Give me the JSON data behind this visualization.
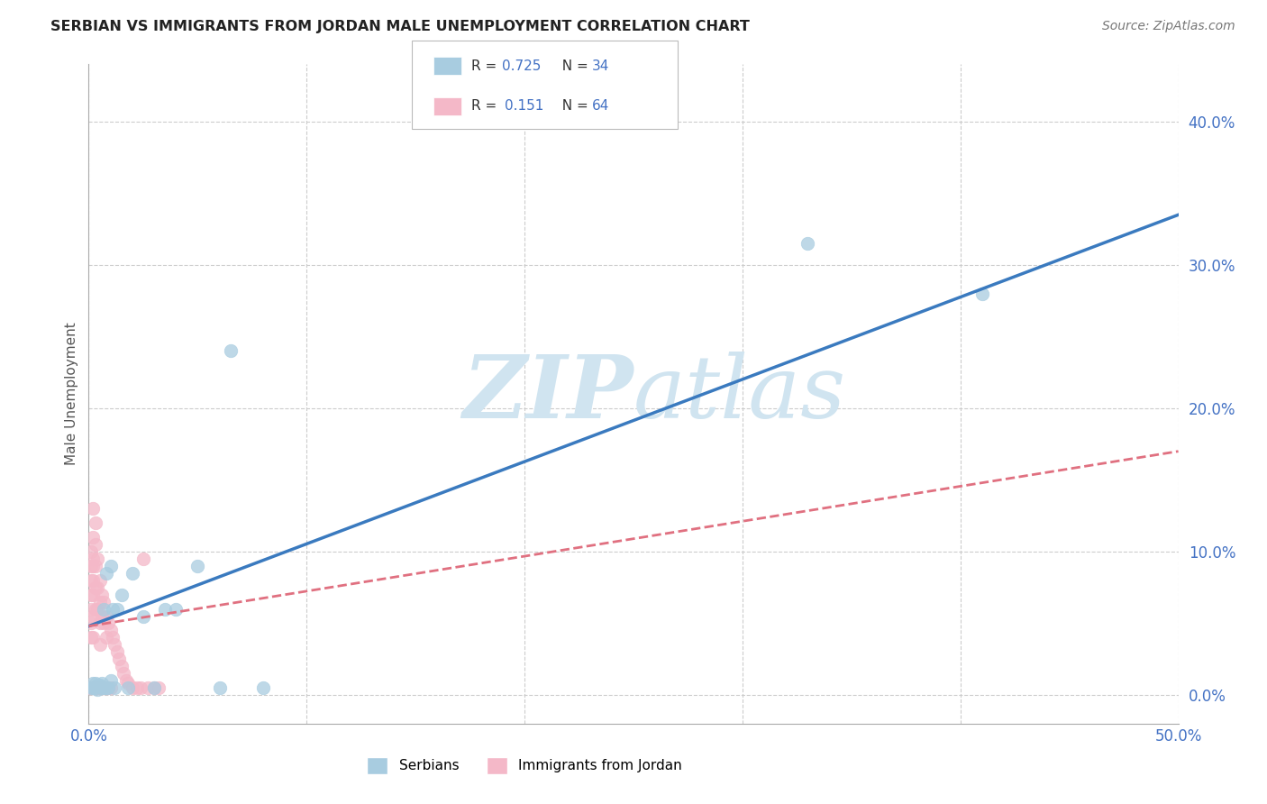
{
  "title": "SERBIAN VS IMMIGRANTS FROM JORDAN MALE UNEMPLOYMENT CORRELATION CHART",
  "source": "Source: ZipAtlas.com",
  "ylabel": "Male Unemployment",
  "xlim": [
    0.0,
    0.5
  ],
  "ylim": [
    -0.02,
    0.44
  ],
  "xticks": [
    0.0,
    0.1,
    0.2,
    0.3,
    0.4,
    0.5
  ],
  "xtick_labels": [
    "0.0%",
    "",
    "",
    "",
    "",
    "50.0%"
  ],
  "yticks": [
    0.0,
    0.1,
    0.2,
    0.3,
    0.4
  ],
  "ytick_labels": [
    "0.0%",
    "10.0%",
    "20.0%",
    "30.0%",
    "40.0%"
  ],
  "background_color": "#ffffff",
  "grid_color": "#cccccc",
  "blue_color": "#a8cce0",
  "pink_color": "#f4b8c8",
  "blue_line_color": "#3a7abf",
  "pink_line_color": "#e07080",
  "watermark_color": "#d0e4f0",
  "legend_color": "#4472c4",
  "serbian_x": [
    0.001,
    0.002,
    0.002,
    0.003,
    0.003,
    0.004,
    0.004,
    0.005,
    0.005,
    0.006,
    0.006,
    0.007,
    0.007,
    0.008,
    0.008,
    0.009,
    0.01,
    0.01,
    0.011,
    0.012,
    0.013,
    0.015,
    0.018,
    0.02,
    0.025,
    0.03,
    0.035,
    0.04,
    0.05,
    0.065,
    0.08,
    0.33,
    0.41,
    0.06
  ],
  "serbian_y": [
    0.005,
    0.005,
    0.008,
    0.005,
    0.008,
    0.004,
    0.007,
    0.006,
    0.007,
    0.005,
    0.008,
    0.005,
    0.06,
    0.005,
    0.085,
    0.005,
    0.01,
    0.09,
    0.06,
    0.005,
    0.06,
    0.07,
    0.005,
    0.085,
    0.055,
    0.005,
    0.06,
    0.06,
    0.09,
    0.24,
    0.005,
    0.315,
    0.28,
    0.005
  ],
  "jordan_x": [
    0.0005,
    0.001,
    0.001,
    0.001,
    0.001,
    0.001,
    0.001,
    0.001,
    0.001,
    0.002,
    0.002,
    0.002,
    0.002,
    0.002,
    0.002,
    0.002,
    0.002,
    0.003,
    0.003,
    0.003,
    0.003,
    0.003,
    0.004,
    0.004,
    0.004,
    0.004,
    0.005,
    0.005,
    0.005,
    0.005,
    0.005,
    0.006,
    0.006,
    0.006,
    0.007,
    0.007,
    0.007,
    0.008,
    0.008,
    0.008,
    0.009,
    0.009,
    0.01,
    0.01,
    0.011,
    0.012,
    0.013,
    0.014,
    0.015,
    0.016,
    0.017,
    0.018,
    0.02,
    0.022,
    0.024,
    0.025,
    0.027,
    0.03,
    0.032,
    0.002,
    0.003,
    0.003,
    0.004,
    0.005
  ],
  "jordan_y": [
    0.005,
    0.1,
    0.09,
    0.08,
    0.07,
    0.06,
    0.05,
    0.04,
    0.005,
    0.11,
    0.095,
    0.09,
    0.08,
    0.07,
    0.055,
    0.04,
    0.005,
    0.105,
    0.09,
    0.075,
    0.06,
    0.005,
    0.095,
    0.075,
    0.06,
    0.005,
    0.08,
    0.065,
    0.05,
    0.035,
    0.005,
    0.07,
    0.055,
    0.005,
    0.065,
    0.05,
    0.005,
    0.055,
    0.04,
    0.005,
    0.05,
    0.005,
    0.045,
    0.005,
    0.04,
    0.035,
    0.03,
    0.025,
    0.02,
    0.015,
    0.01,
    0.008,
    0.005,
    0.005,
    0.005,
    0.095,
    0.005,
    0.005,
    0.005,
    0.13,
    0.12,
    0.005,
    0.005,
    0.005
  ],
  "blue_trend_x0": 0.0,
  "blue_trend_y0": 0.048,
  "blue_trend_x1": 0.5,
  "blue_trend_y1": 0.335,
  "pink_trend_x0": 0.0,
  "pink_trend_y0": 0.048,
  "pink_trend_x1": 0.5,
  "pink_trend_y1": 0.17
}
